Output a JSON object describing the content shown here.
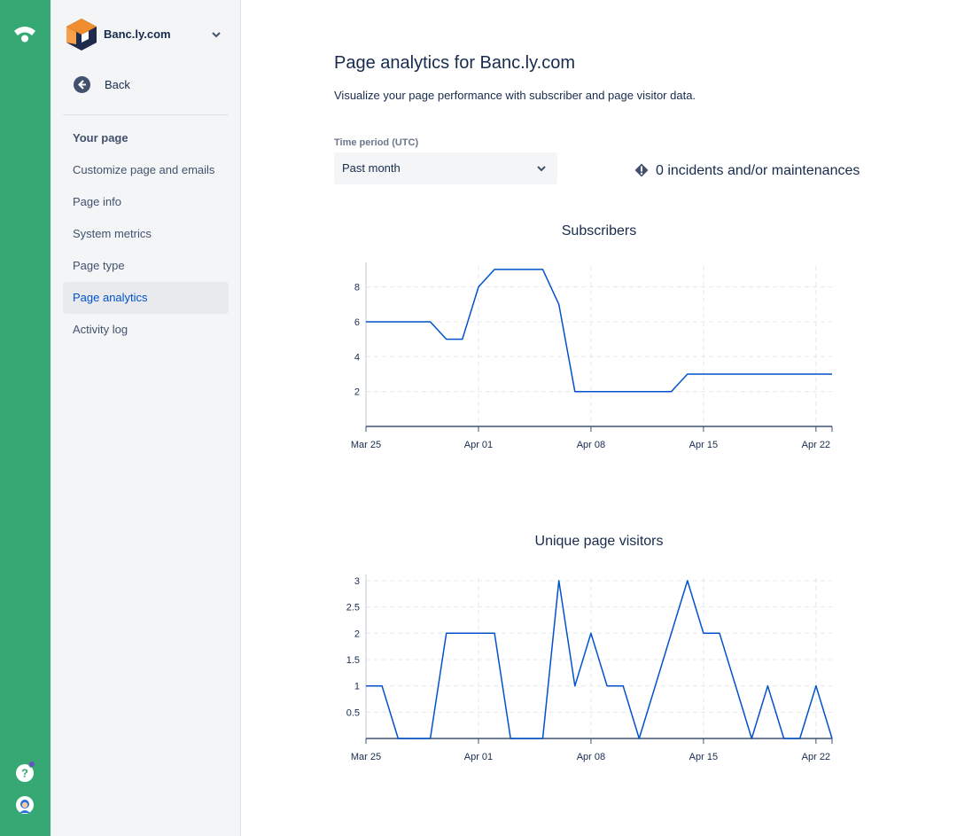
{
  "sidebar": {
    "site_name": "Banc.ly.com",
    "back_label": "Back",
    "section_title": "Your page",
    "items": [
      {
        "label": "Customize page and emails"
      },
      {
        "label": "Page info"
      },
      {
        "label": "System metrics"
      },
      {
        "label": "Page type"
      },
      {
        "label": "Page analytics",
        "active": true
      },
      {
        "label": "Activity log"
      }
    ]
  },
  "main": {
    "title": "Page analytics for Banc.ly.com",
    "subtitle": "Visualize your page performance with subscriber and page visitor data.",
    "time_period_label": "Time period (UTC)",
    "time_period_value": "Past month",
    "incidents_text": "0 incidents and/or maintenances"
  },
  "colors": {
    "rail": "#36a873",
    "accent": "#0052cc",
    "line": "#0052cc"
  },
  "icons": {
    "rail_logo": "statuspage-logo-icon",
    "help": "help-icon",
    "user": "user-avatar-icon",
    "back": "arrow-left-circle-icon",
    "dropdown": "chevron-down-icon",
    "incidents": "diamond-alert-icon"
  },
  "chart_data": [
    {
      "type": "line",
      "title": "Subscribers",
      "xlabel": "",
      "ylabel": "",
      "x_ticks": [
        "Mar 25",
        "Apr 01",
        "Apr 08",
        "Apr 15",
        "Apr 22"
      ],
      "y_ticks": [
        2,
        4,
        6,
        8
      ],
      "xlim": [
        0,
        29
      ],
      "ylim": [
        0,
        9.2
      ],
      "grid": true,
      "points": [
        {
          "x": 0,
          "y": 6
        },
        {
          "x": 1,
          "y": 6
        },
        {
          "x": 2,
          "y": 6
        },
        {
          "x": 3,
          "y": 6
        },
        {
          "x": 4,
          "y": 6
        },
        {
          "x": 5,
          "y": 5
        },
        {
          "x": 6,
          "y": 5
        },
        {
          "x": 7,
          "y": 8
        },
        {
          "x": 8,
          "y": 9
        },
        {
          "x": 9,
          "y": 9
        },
        {
          "x": 10,
          "y": 9
        },
        {
          "x": 11,
          "y": 9
        },
        {
          "x": 12,
          "y": 7
        },
        {
          "x": 13,
          "y": 2
        },
        {
          "x": 14,
          "y": 2
        },
        {
          "x": 15,
          "y": 2
        },
        {
          "x": 16,
          "y": 2
        },
        {
          "x": 17,
          "y": 2
        },
        {
          "x": 18,
          "y": 2
        },
        {
          "x": 19,
          "y": 2
        },
        {
          "x": 20,
          "y": 3
        },
        {
          "x": 21,
          "y": 3
        },
        {
          "x": 22,
          "y": 3
        },
        {
          "x": 23,
          "y": 3
        },
        {
          "x": 24,
          "y": 3
        },
        {
          "x": 25,
          "y": 3
        },
        {
          "x": 26,
          "y": 3
        },
        {
          "x": 27,
          "y": 3
        },
        {
          "x": 28,
          "y": 3
        },
        {
          "x": 29,
          "y": 3
        }
      ]
    },
    {
      "type": "line",
      "title": "Unique page visitors",
      "xlabel": "",
      "ylabel": "",
      "x_ticks": [
        "Mar 25",
        "Apr 01",
        "Apr 08",
        "Apr 15",
        "Apr 22"
      ],
      "y_ticks": [
        "0.5",
        "1",
        "1.5",
        "2",
        "2.5",
        "3"
      ],
      "xlim": [
        0,
        29
      ],
      "ylim": [
        0,
        3.05
      ],
      "grid": true,
      "points": [
        {
          "x": 0,
          "y": 1
        },
        {
          "x": 1,
          "y": 1
        },
        {
          "x": 2,
          "y": 0
        },
        {
          "x": 3,
          "y": 0
        },
        {
          "x": 4,
          "y": 0
        },
        {
          "x": 5,
          "y": 2
        },
        {
          "x": 6,
          "y": 2
        },
        {
          "x": 7,
          "y": 2
        },
        {
          "x": 8,
          "y": 2
        },
        {
          "x": 9,
          "y": 0
        },
        {
          "x": 10,
          "y": 0
        },
        {
          "x": 11,
          "y": 0
        },
        {
          "x": 12,
          "y": 3
        },
        {
          "x": 13,
          "y": 1
        },
        {
          "x": 14,
          "y": 2
        },
        {
          "x": 15,
          "y": 1
        },
        {
          "x": 16,
          "y": 1
        },
        {
          "x": 17,
          "y": 0
        },
        {
          "x": 18,
          "y": 1
        },
        {
          "x": 19,
          "y": 2
        },
        {
          "x": 20,
          "y": 3
        },
        {
          "x": 21,
          "y": 2
        },
        {
          "x": 22,
          "y": 2
        },
        {
          "x": 23,
          "y": 1
        },
        {
          "x": 24,
          "y": 0
        },
        {
          "x": 25,
          "y": 1
        },
        {
          "x": 26,
          "y": 0
        },
        {
          "x": 27,
          "y": 0
        },
        {
          "x": 28,
          "y": 1
        },
        {
          "x": 29,
          "y": 0
        }
      ]
    }
  ]
}
